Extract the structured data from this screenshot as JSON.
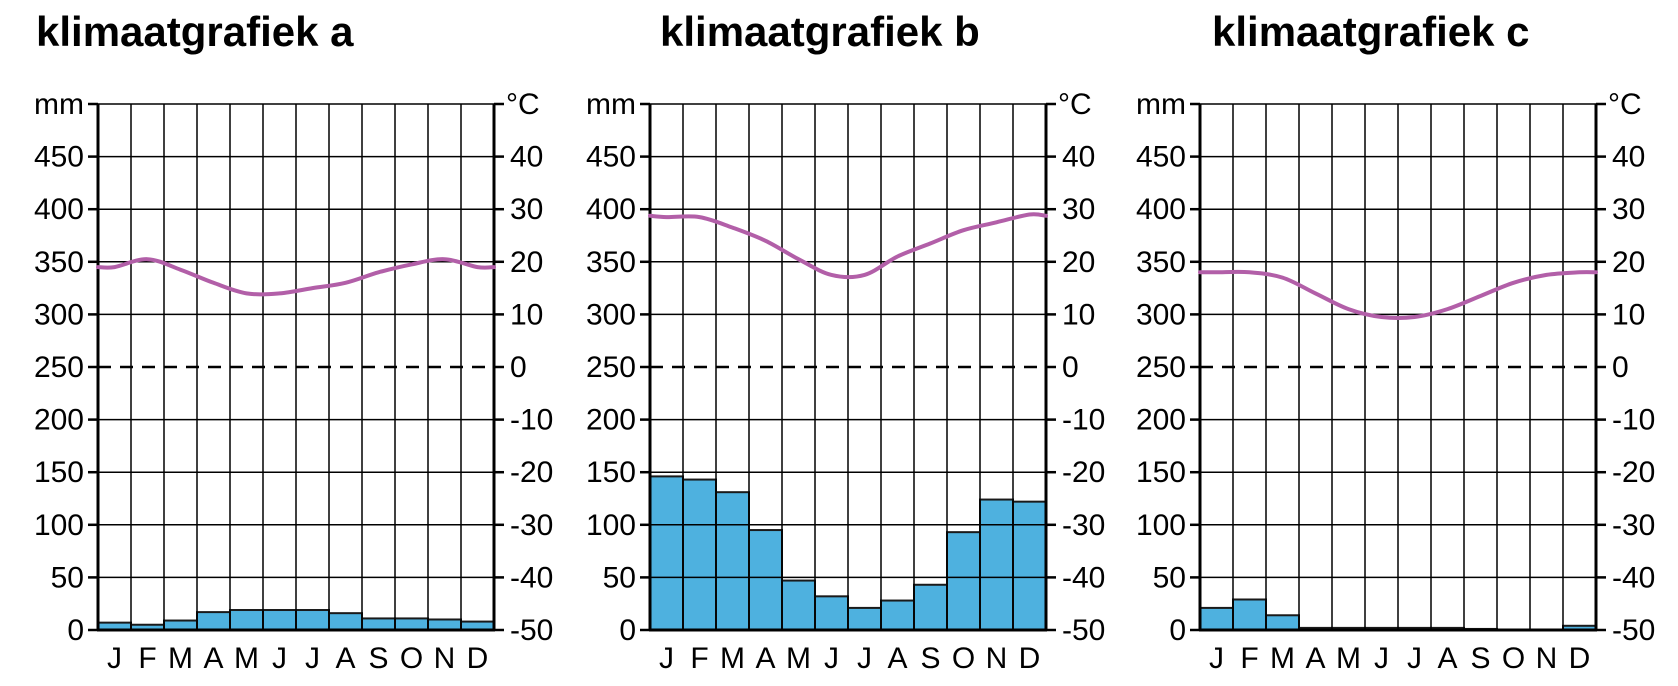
{
  "chart_data": [
    {
      "type": "bar",
      "title": "klimaatgrafiek a",
      "categories": [
        "J",
        "F",
        "M",
        "A",
        "M",
        "J",
        "J",
        "A",
        "S",
        "O",
        "N",
        "D"
      ],
      "left_unit": "mm",
      "right_unit": "°C",
      "left_ticks": [
        "0",
        "50",
        "100",
        "150",
        "200",
        "250",
        "300",
        "350",
        "400",
        "450"
      ],
      "right_ticks": [
        "-50",
        "-40",
        "-30",
        "-20",
        "-10",
        "0",
        "10",
        "20",
        "30",
        "40"
      ],
      "ylim_precip": [
        0,
        500
      ],
      "ylim_temp": [
        -50,
        50
      ],
      "grid": true,
      "precipitation_mm": [
        7,
        5,
        9,
        17,
        19,
        19,
        19,
        16,
        11,
        11,
        10,
        8
      ],
      "temperature_c": [
        19,
        20.5,
        18.5,
        16,
        14,
        14,
        15,
        16,
        18,
        19.5,
        20.5,
        19
      ]
    },
    {
      "type": "bar",
      "title": "klimaatgrafiek b",
      "categories": [
        "J",
        "F",
        "M",
        "A",
        "M",
        "J",
        "J",
        "A",
        "S",
        "O",
        "N",
        "D"
      ],
      "left_unit": "mm",
      "right_unit": "°C",
      "left_ticks": [
        "0",
        "50",
        "100",
        "150",
        "200",
        "250",
        "300",
        "350",
        "400",
        "450"
      ],
      "right_ticks": [
        "-50",
        "-40",
        "-30",
        "-20",
        "-10",
        "0",
        "10",
        "20",
        "30",
        "40"
      ],
      "ylim_precip": [
        0,
        500
      ],
      "ylim_temp": [
        -50,
        50
      ],
      "grid": true,
      "precipitation_mm": [
        146,
        143,
        131,
        95,
        47,
        32,
        21,
        28,
        43,
        93,
        124,
        122
      ],
      "temperature_c": [
        28.5,
        28.5,
        26.5,
        24,
        20.5,
        17.5,
        17.5,
        21,
        23.5,
        26,
        27.5,
        29
      ]
    },
    {
      "type": "bar",
      "title": "klimaatgrafiek c",
      "categories": [
        "J",
        "F",
        "M",
        "A",
        "M",
        "J",
        "J",
        "A",
        "S",
        "O",
        "N",
        "D"
      ],
      "left_unit": "mm",
      "right_unit": "°C",
      "left_ticks": [
        "0",
        "50",
        "100",
        "150",
        "200",
        "250",
        "300",
        "350",
        "400",
        "450"
      ],
      "right_ticks": [
        "-50",
        "-40",
        "-30",
        "-20",
        "-10",
        "0",
        "10",
        "20",
        "30",
        "40"
      ],
      "ylim_precip": [
        0,
        500
      ],
      "ylim_temp": [
        -50,
        50
      ],
      "grid": true,
      "precipitation_mm": [
        21,
        29,
        14,
        2,
        2,
        2,
        2,
        2,
        1,
        0,
        0,
        4
      ],
      "temperature_c": [
        18,
        18,
        17,
        14,
        11,
        9.5,
        9.5,
        11,
        13.5,
        16,
        17.5,
        18
      ]
    }
  ],
  "colors": {
    "bar_fill": "#4eb1df",
    "bar_stroke": "#1a1a1a",
    "temperature_line": "#b25fa8",
    "grid": "#000000"
  }
}
